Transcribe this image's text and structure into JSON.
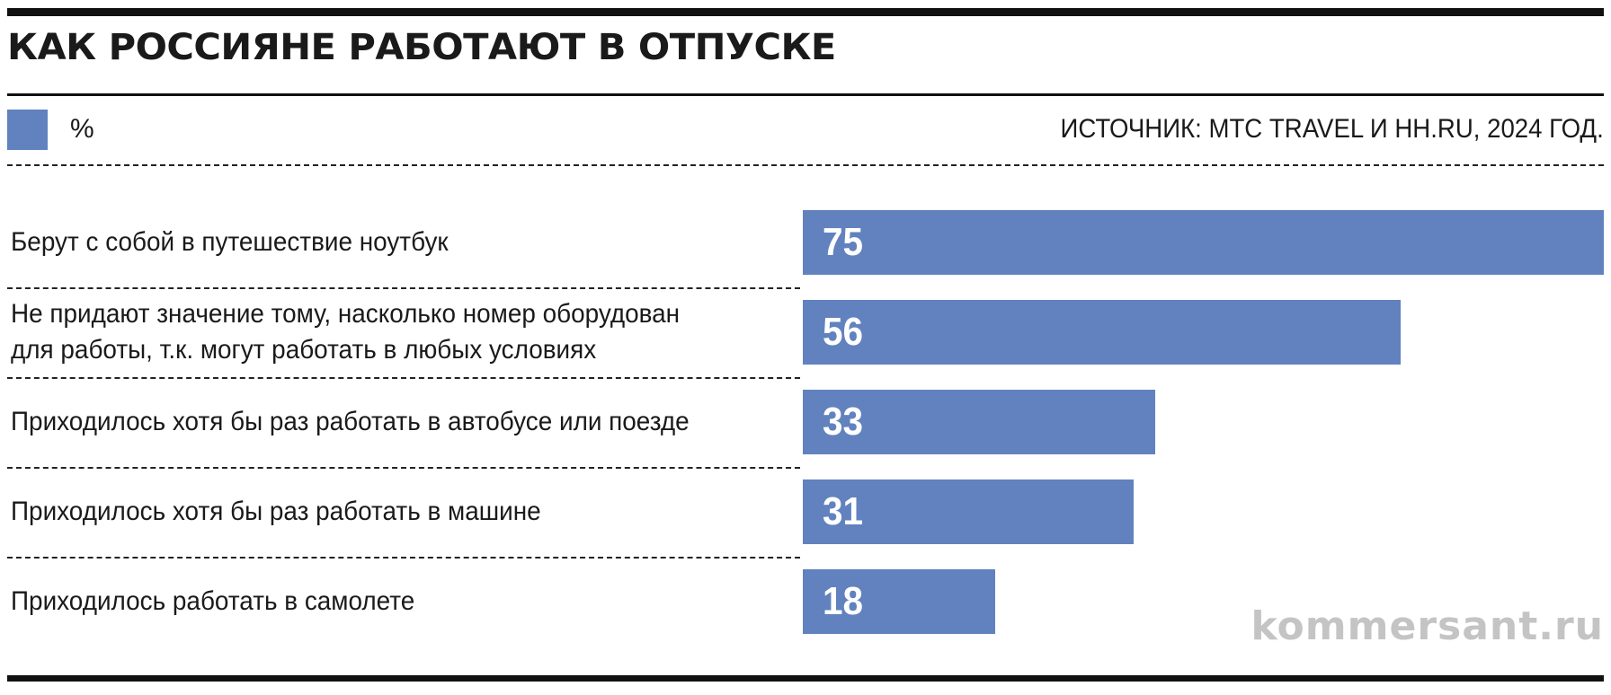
{
  "header": {
    "title": "КАК РОССИЯНЕ РАБОТАЮТ В ОТПУСКЕ",
    "source": "ИСТОЧНИК: МТС TRAVEL И HH.RU, 2024 ГОД."
  },
  "legend": {
    "label": "%",
    "color": "#6182be"
  },
  "watermark": "kommersant.ru",
  "chart_data": {
    "type": "bar",
    "orientation": "horizontal",
    "title": "КАК РОССИЯНЕ РАБОТАЮТ В ОТПУСКЕ",
    "unit": "%",
    "xlim": [
      0,
      75
    ],
    "categories": [
      [
        "Берут с собой в путешествие ноутбук"
      ],
      [
        "Не придают значение тому, насколько номер оборудован",
        "для работы, т.к. могут работать в любых условиях"
      ],
      [
        "Приходилось хотя бы раз работать в автобусе или поезде"
      ],
      [
        "Приходилось хотя бы раз работать в машине"
      ],
      [
        "Приходилось работать в самолете"
      ]
    ],
    "values": [
      75,
      56,
      33,
      31,
      18
    ],
    "bar_color": "#6182be"
  }
}
